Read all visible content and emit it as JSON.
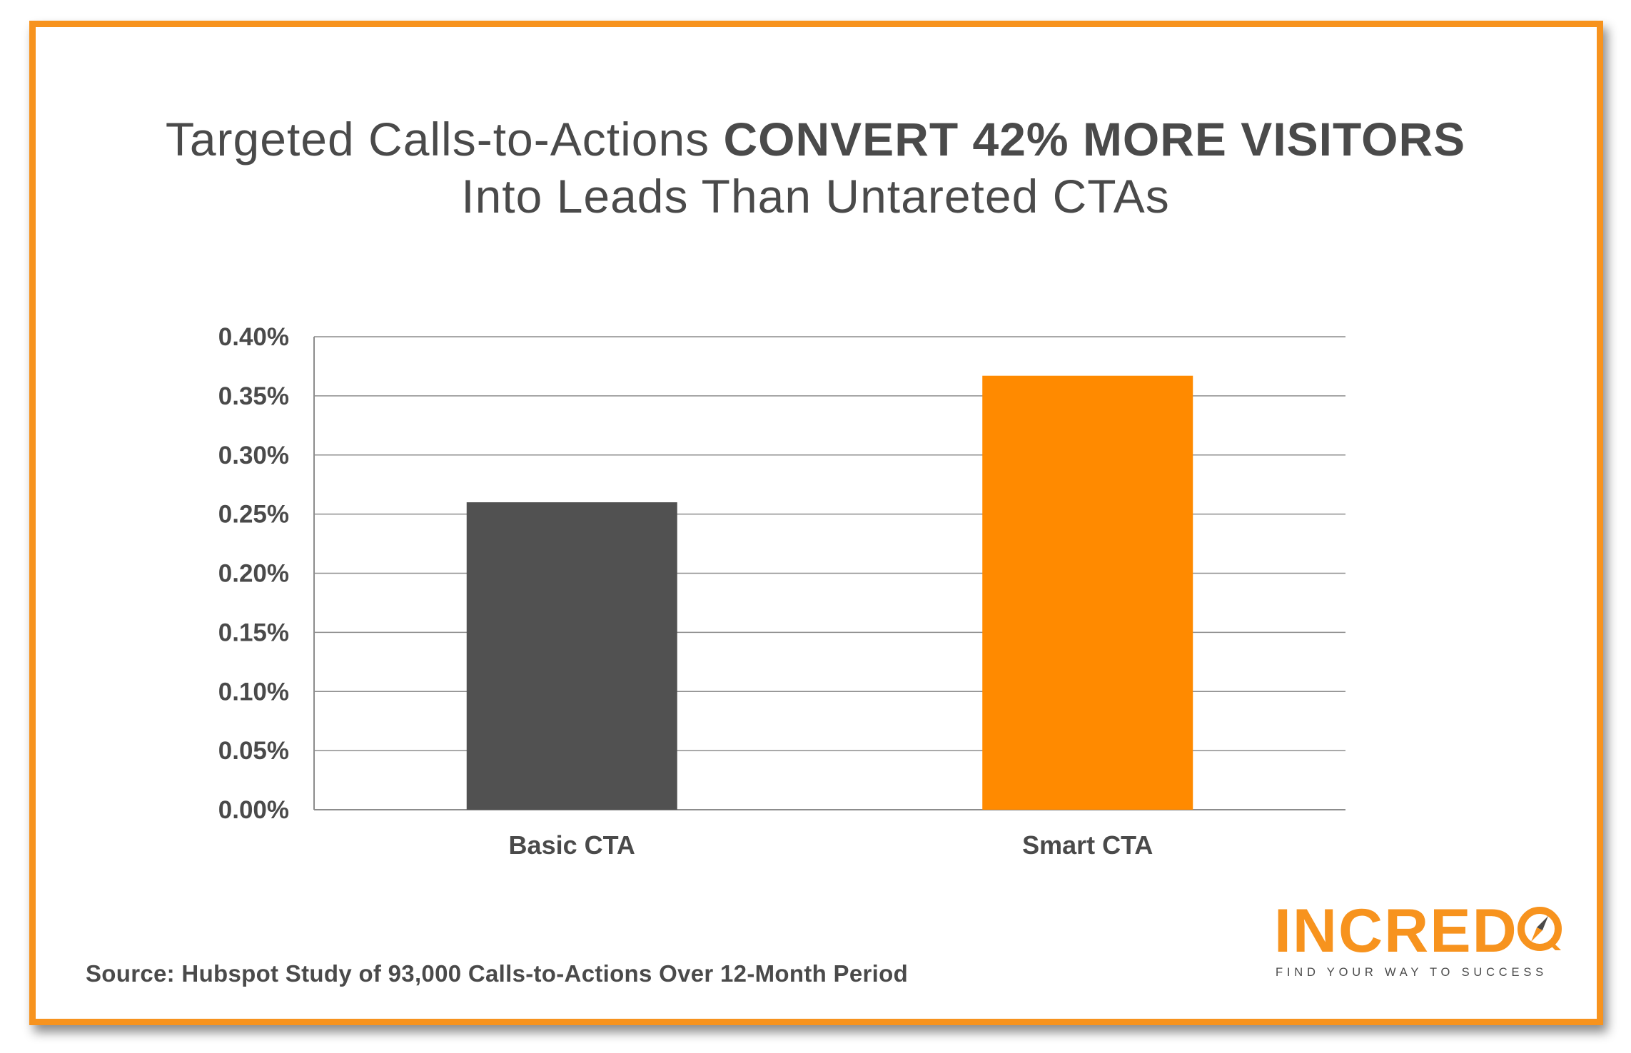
{
  "title": {
    "line1_normal": "Targeted Calls-to-Actions ",
    "line1_bold": "CONVERT 42% MORE VISITORS",
    "line2": "Into Leads Than Untareted CTAs"
  },
  "source": "Source: Hubspot Study of 93,000 Calls-to-Actions Over 12-Month Period",
  "logo": {
    "wordmark": "INCREDQ",
    "tagline": "FIND YOUR WAY TO SUCCESS"
  },
  "colors": {
    "accent": "#F7931E",
    "bar_basic": "#515151",
    "bar_smart": "#FF8A00",
    "text": "#4a4a4a",
    "grid": "#8c8c8c"
  },
  "chart_data": {
    "type": "bar",
    "categories": [
      "Basic CTA",
      "Smart CTA"
    ],
    "values": [
      0.26,
      0.367
    ],
    "value_unit": "%",
    "ylim": [
      0,
      0.4
    ],
    "yticks": [
      "0.00%",
      "0.05%",
      "0.10%",
      "0.15%",
      "0.20%",
      "0.25%",
      "0.30%",
      "0.35%",
      "0.40%"
    ],
    "grid": true,
    "title": "",
    "xlabel": "",
    "ylabel": ""
  }
}
